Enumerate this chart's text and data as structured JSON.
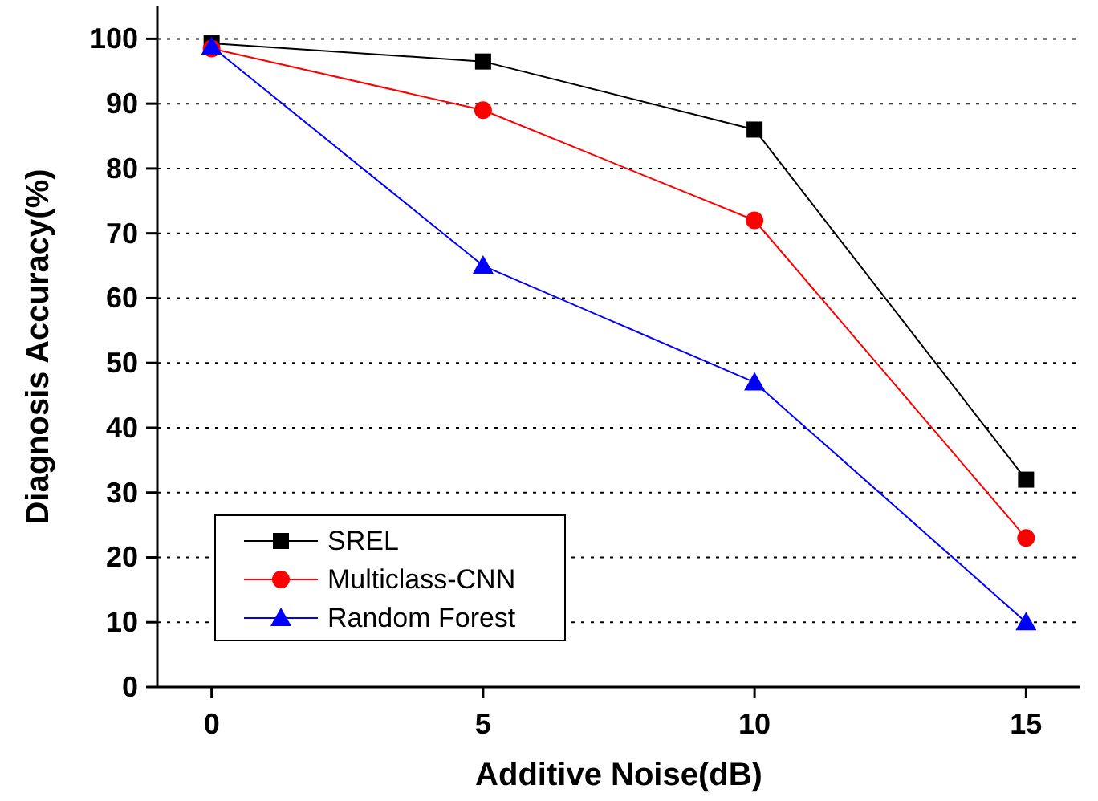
{
  "chart_data": {
    "type": "line",
    "xlabel": "Additive Noise(dB)",
    "ylabel": "Diagnosis Accuracy(%)",
    "x": [
      0,
      5,
      10,
      15
    ],
    "xlim": [
      -1,
      16
    ],
    "xticks": [
      0,
      5,
      10,
      15
    ],
    "ylim": [
      0,
      105
    ],
    "yticks": [
      0,
      10,
      20,
      30,
      40,
      50,
      60,
      70,
      80,
      90,
      100
    ],
    "grid": "y",
    "legend": "bottom left",
    "line_style": "solid",
    "series": [
      {
        "name": "SREL",
        "color": "#000000",
        "marker": "square",
        "values": [
          99.3,
          96.5,
          86,
          32
        ]
      },
      {
        "name": "Multiclass-CNN",
        "color": "#ff0000",
        "marker": "circle",
        "values": [
          98.5,
          89,
          72,
          23
        ]
      },
      {
        "name": "Random Forest",
        "color": "#0000ff",
        "marker": "triangle",
        "values": [
          98.8,
          65,
          47,
          10
        ]
      }
    ]
  }
}
